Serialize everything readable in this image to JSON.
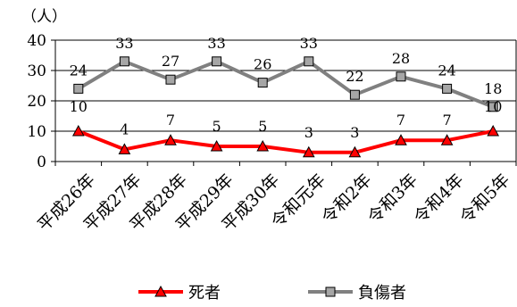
{
  "chart_data": {
    "type": "line",
    "unit_label": "（人）",
    "categories": [
      "平成26年",
      "平成27年",
      "平成28年",
      "平成29年",
      "平成30年",
      "令和元年",
      "令和2年",
      "令和3年",
      "令和4年",
      "令和5年"
    ],
    "yticks": [
      "0",
      "10",
      "20",
      "30",
      "40"
    ],
    "ylim": [
      0,
      40
    ],
    "grid": true,
    "legend_position": "bottom",
    "series": [
      {
        "name": "死者",
        "key": "deaths",
        "color": "#ff0000",
        "marker_fill": "#ff0000",
        "marker": "triangle",
        "values": [
          10,
          4,
          7,
          5,
          5,
          3,
          3,
          7,
          7,
          10
        ],
        "labels": [
          "10",
          "4",
          "7",
          "5",
          "5",
          "3",
          "3",
          "7",
          "7",
          "10"
        ]
      },
      {
        "name": "負傷者",
        "key": "injured",
        "color": "#808080",
        "marker_fill": "#a6a6a6",
        "marker": "square",
        "values": [
          24,
          33,
          27,
          33,
          26,
          33,
          22,
          28,
          24,
          18
        ],
        "labels": [
          "24",
          "33",
          "27",
          "33",
          "26",
          "33",
          "22",
          "28",
          "24",
          "18"
        ]
      }
    ]
  }
}
